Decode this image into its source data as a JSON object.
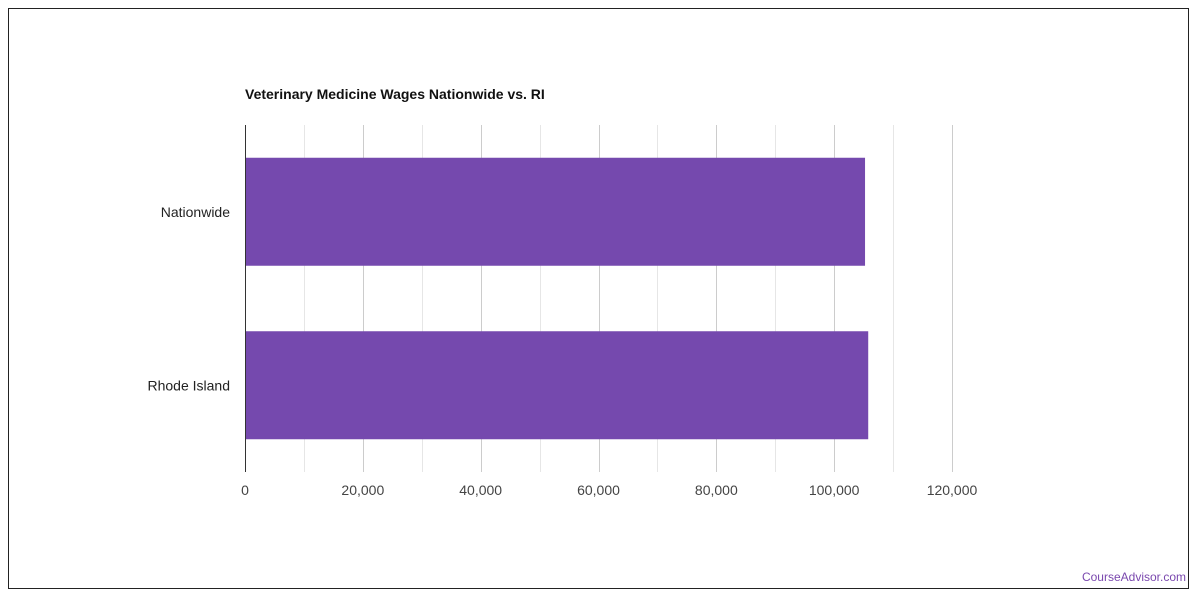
{
  "chart_data": {
    "type": "bar",
    "orientation": "horizontal",
    "title": "Veterinary Medicine Wages Nationwide vs. RI",
    "categories": [
      "Nationwide",
      "Rhode Island"
    ],
    "values": [
      105240,
      105780
    ],
    "x_ticks": [
      "0",
      "20,000",
      "40,000",
      "60,000",
      "80,000",
      "100,000",
      "120,000"
    ],
    "xlim": [
      0,
      120000
    ],
    "grid": true,
    "bar_color": "#7549ae"
  },
  "footer": {
    "source": "CourseAdvisor.com"
  }
}
